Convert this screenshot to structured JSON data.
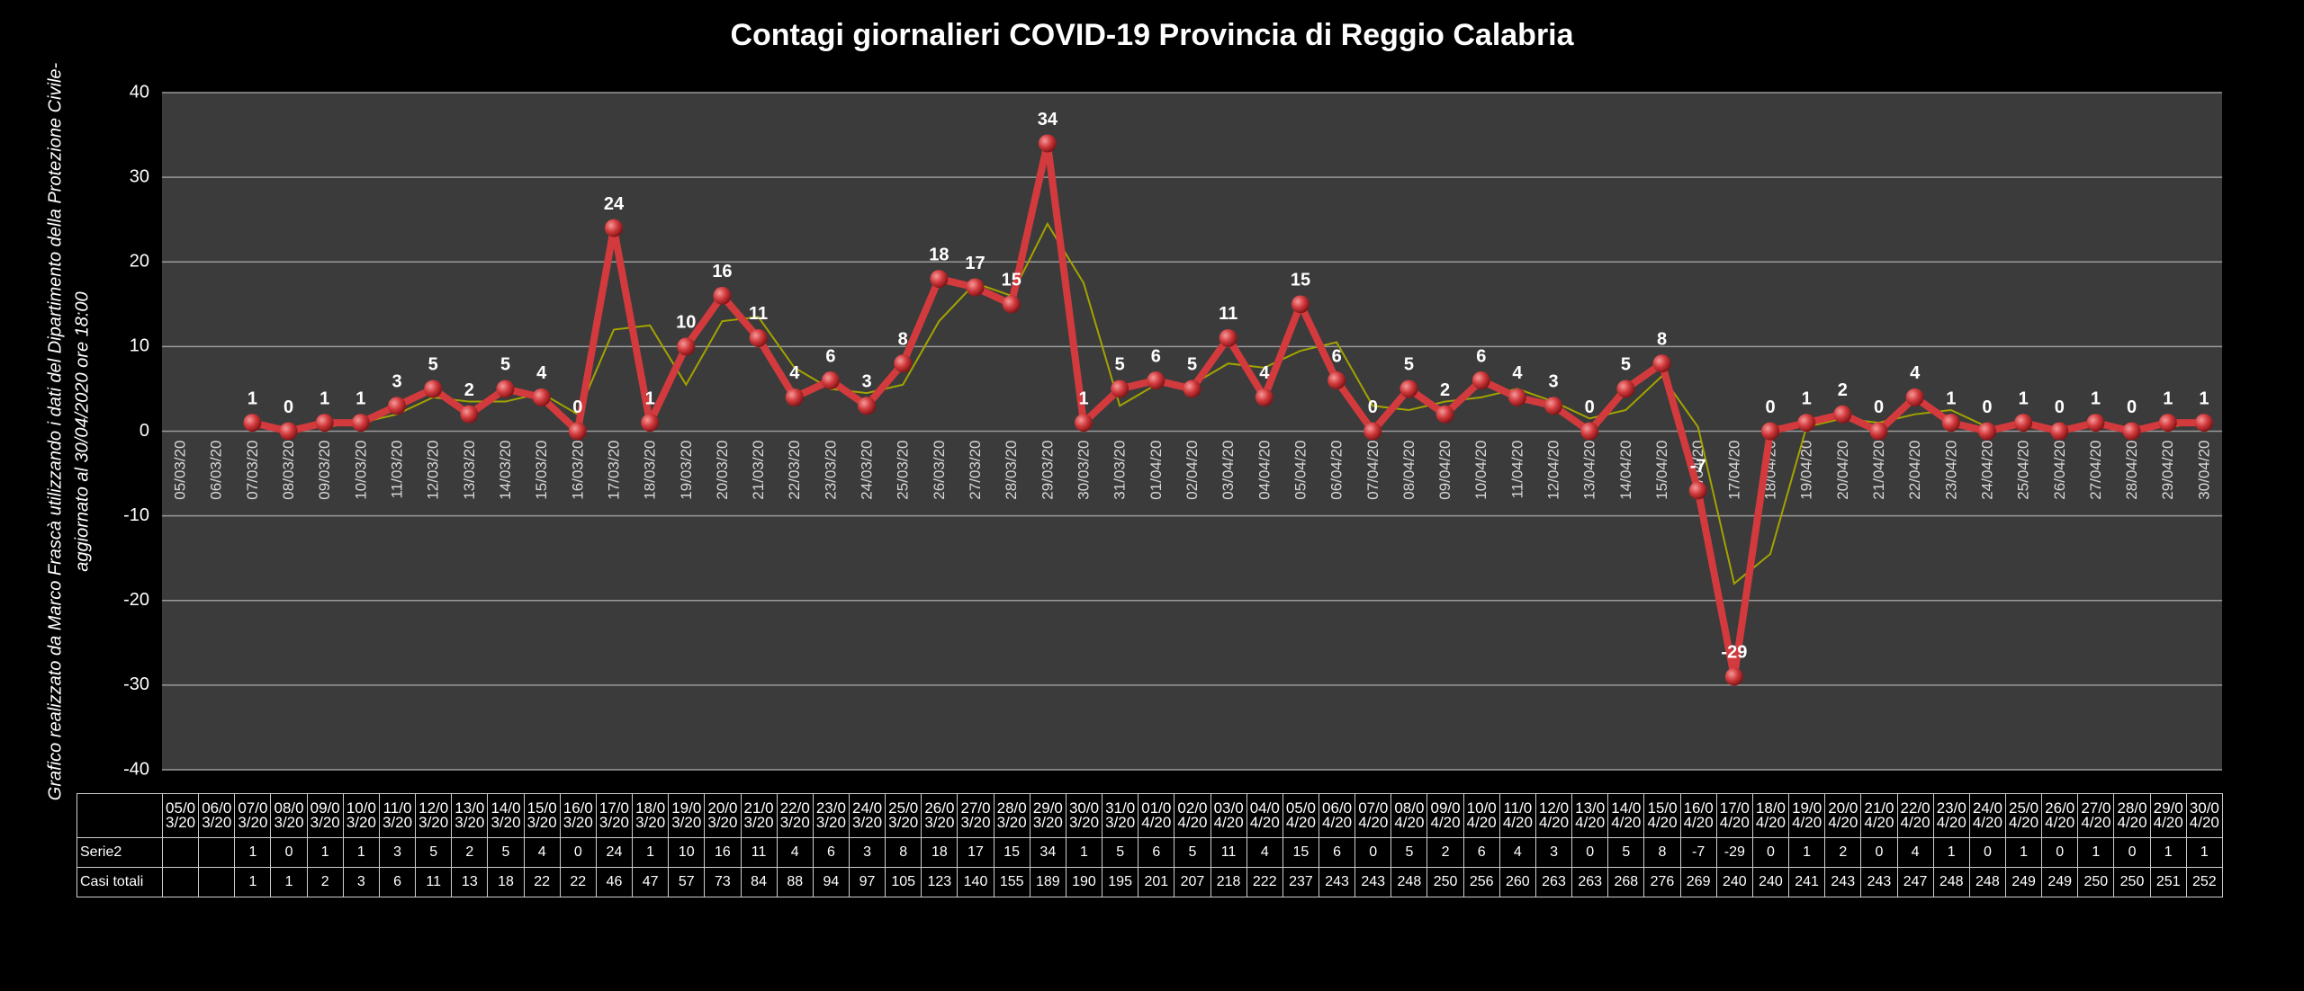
{
  "chart_data": {
    "type": "line",
    "title": "Contagi  giornalieri COVID-19 Provincia di Reggio Calabria",
    "side_note": [
      "Grafico  realizzato da Marco Frascà  utilizzando i dati del Dipartimento  della Protezione Civile-",
      "aggiornato al  30/04/2020 ore 18:00"
    ],
    "categories": [
      "05/03/20",
      "06/03/20",
      "07/03/20",
      "08/03/20",
      "09/03/20",
      "10/03/20",
      "11/03/20",
      "12/03/20",
      "13/03/20",
      "14/03/20",
      "15/03/20",
      "16/03/20",
      "17/03/20",
      "18/03/20",
      "19/03/20",
      "20/03/20",
      "21/03/20",
      "22/03/20",
      "23/03/20",
      "24/03/20",
      "25/03/20",
      "26/03/20",
      "27/03/20",
      "28/03/20",
      "29/03/20",
      "30/03/20",
      "31/03/20",
      "01/04/20",
      "02/04/20",
      "03/04/20",
      "04/04/20",
      "05/04/20",
      "06/04/20",
      "07/04/20",
      "08/04/20",
      "09/04/20",
      "10/04/20",
      "11/04/20",
      "12/04/20",
      "13/04/20",
      "14/04/20",
      "15/04/20",
      "16/04/20",
      "17/04/20",
      "18/04/20",
      "19/04/20",
      "20/04/20",
      "21/04/20",
      "22/04/20",
      "23/04/20",
      "24/04/20",
      "25/04/20",
      "26/04/20",
      "27/04/20",
      "28/04/20",
      "29/04/20",
      "30/04/20"
    ],
    "series": [
      {
        "name": "Serie2",
        "color": "#d23a3d",
        "values": [
          null,
          null,
          1,
          0,
          1,
          1,
          3,
          5,
          2,
          5,
          4,
          0,
          24,
          1,
          10,
          16,
          11,
          4,
          6,
          3,
          8,
          18,
          17,
          15,
          34,
          1,
          5,
          6,
          5,
          11,
          4,
          15,
          6,
          0,
          5,
          2,
          6,
          4,
          3,
          0,
          5,
          8,
          -7,
          -29,
          0,
          1,
          2,
          0,
          4,
          1,
          0,
          1,
          0,
          1,
          0,
          1,
          1
        ]
      }
    ],
    "trendline": {
      "type": "moving_average",
      "period": 2,
      "color": "#a3a300"
    },
    "data_table": {
      "rows": [
        {
          "name": "Casi totali",
          "values": [
            null,
            null,
            1,
            1,
            2,
            3,
            6,
            11,
            13,
            18,
            22,
            22,
            46,
            47,
            57,
            73,
            84,
            88,
            94,
            97,
            105,
            123,
            140,
            155,
            189,
            190,
            195,
            201,
            207,
            218,
            222,
            237,
            243,
            243,
            248,
            250,
            256,
            260,
            263,
            263,
            268,
            276,
            269,
            240,
            240,
            241,
            243,
            243,
            247,
            248,
            248,
            249,
            249,
            250,
            250,
            251,
            252
          ]
        }
      ]
    },
    "ylim": [
      -40,
      40
    ],
    "yticks": [
      -40,
      -30,
      -20,
      -10,
      0,
      10,
      20,
      30,
      40
    ],
    "grid": true
  }
}
